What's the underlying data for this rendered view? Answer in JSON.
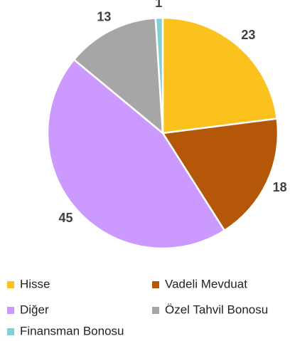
{
  "chart_data": {
    "type": "pie",
    "categories": [
      "Hisse",
      "Vadeli Mevduat",
      "Diğer",
      "Özel Tahvil Bonosu",
      "Finansman Bonosu"
    ],
    "values": [
      23,
      18,
      45,
      13,
      1
    ],
    "colors": [
      "#FBC11C",
      "#B45709",
      "#CC99FF",
      "#A6A6A6",
      "#7FD0DB"
    ]
  }
}
